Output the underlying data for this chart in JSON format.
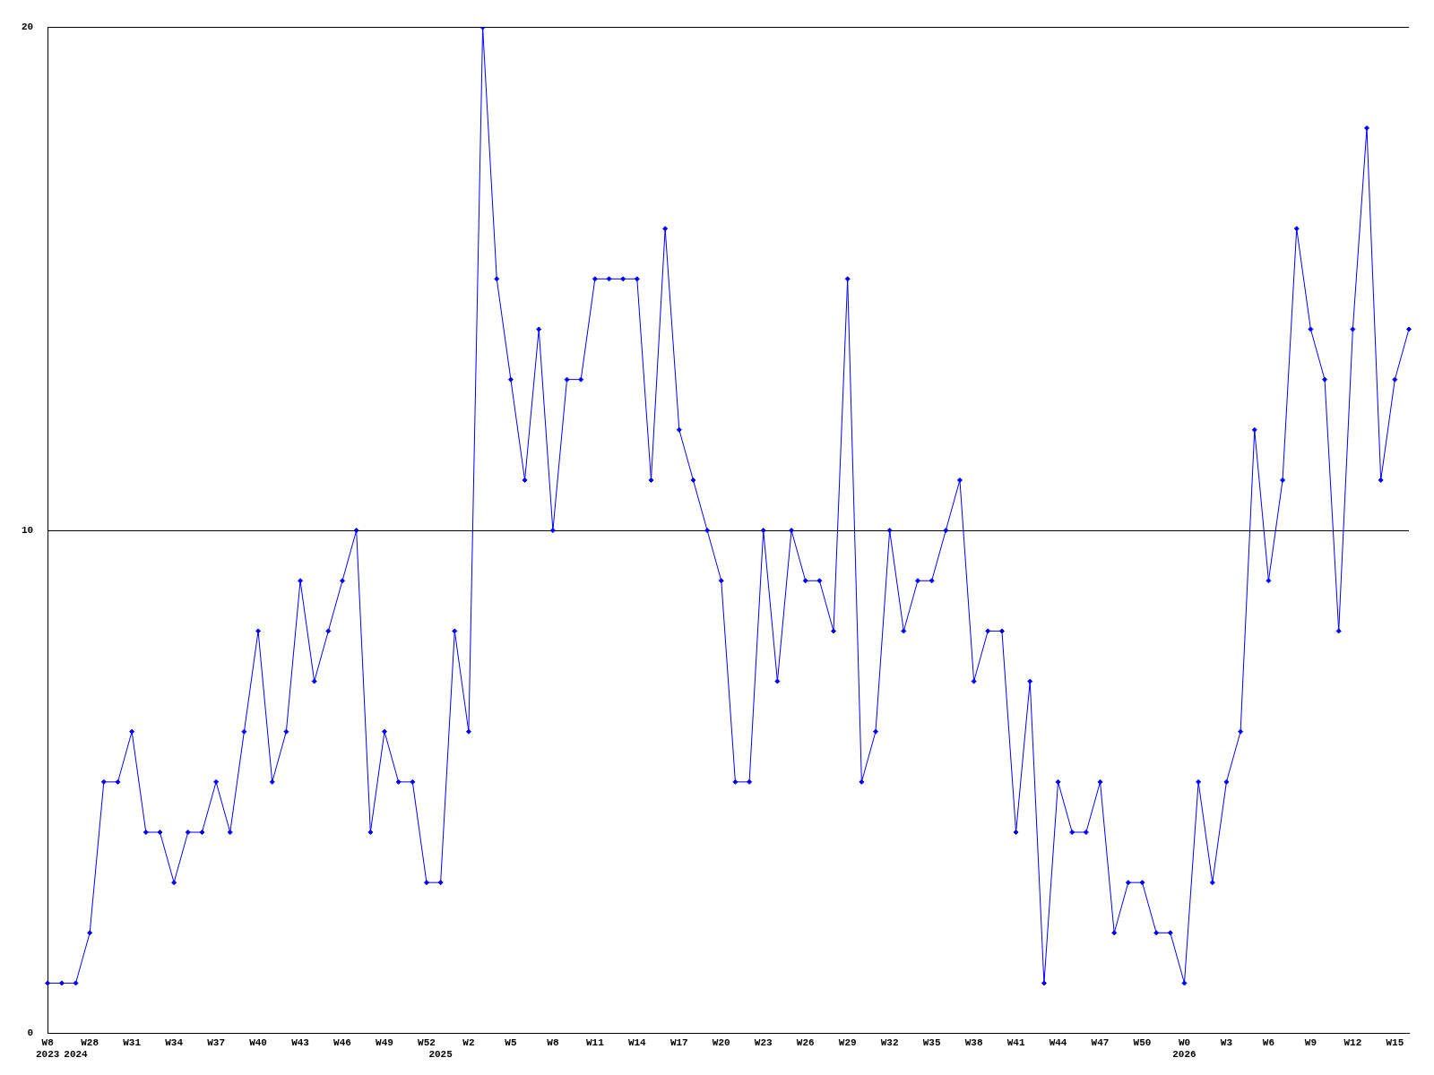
{
  "chart_data": {
    "type": "line",
    "categories": [
      "W8\n2023",
      null,
      "\n2024",
      "W28",
      null,
      null,
      "W31",
      null,
      null,
      "W34",
      null,
      null,
      "W37",
      null,
      null,
      "W40",
      null,
      null,
      "W43",
      null,
      null,
      "W46",
      null,
      null,
      "W49",
      null,
      null,
      "W52",
      "\n2025",
      null,
      "W2",
      null,
      null,
      "W5",
      null,
      null,
      "W8",
      null,
      null,
      "W11",
      null,
      null,
      "W14",
      null,
      null,
      "W17",
      null,
      null,
      "W20",
      null,
      null,
      "W23",
      null,
      null,
      "W26",
      null,
      null,
      "W29",
      null,
      null,
      "W32",
      null,
      null,
      "W35",
      null,
      null,
      "W38",
      null,
      null,
      "W41",
      null,
      null,
      "W44",
      null,
      null,
      "W47",
      null,
      null,
      "W50",
      null,
      null,
      "W0\n2026",
      null,
      null,
      "W3",
      null,
      null,
      "W6",
      null,
      null,
      "W9",
      null,
      null,
      "W12",
      null,
      null,
      "W15",
      null
    ],
    "series": [
      {
        "color": "#0000ff",
        "values": [
          1,
          1,
          1,
          2,
          5,
          5,
          6,
          4,
          4,
          3,
          4,
          4,
          5,
          4,
          6,
          8,
          5,
          6,
          9,
          7,
          8,
          9,
          10,
          4,
          6,
          5,
          5,
          3,
          3,
          8,
          6,
          20,
          15,
          13,
          11,
          14,
          10,
          13,
          13,
          15,
          15,
          15,
          15,
          11,
          16,
          12,
          11,
          10,
          9,
          5,
          5,
          10,
          7,
          10,
          9,
          9,
          8,
          15,
          5,
          6,
          10,
          8,
          9,
          9,
          10,
          11,
          7,
          8,
          8,
          4,
          7,
          1,
          5,
          4,
          4,
          5,
          2,
          3,
          3,
          2,
          2,
          1,
          5,
          3,
          5,
          6,
          12,
          9,
          11,
          16,
          14,
          13,
          8,
          14,
          18,
          11,
          13,
          14
        ]
      }
    ],
    "ylim": [
      0,
      20
    ],
    "yticks": [
      0,
      10,
      20
    ],
    "grid": "y",
    "legend": false,
    "marker": "diamond",
    "line_style": "solid"
  }
}
